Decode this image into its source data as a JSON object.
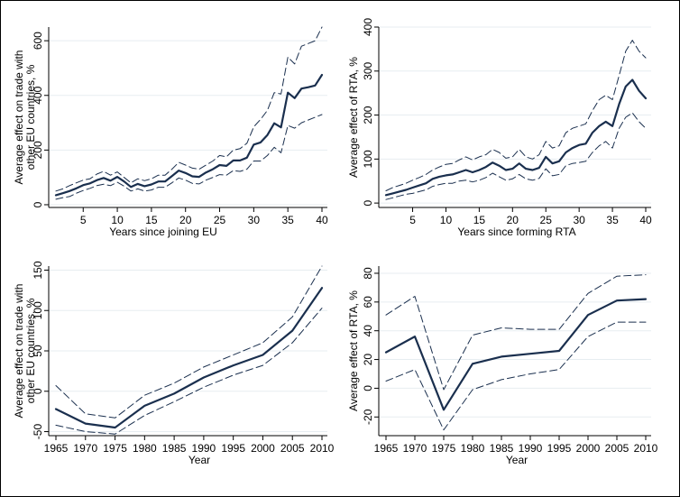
{
  "chart_data": [
    {
      "type": "line",
      "xlabel": "Years since joining EU",
      "ylabel": [
        "Average effect on trade with",
        "other EU countries, %"
      ],
      "xlim": [
        1,
        40
      ],
      "ylim": [
        -10,
        650
      ],
      "xticks": [
        "5",
        "10",
        "15",
        "20",
        "25",
        "30",
        "35",
        "40"
      ],
      "yticks": [
        "0",
        "200",
        "400",
        "600"
      ],
      "x": [
        1,
        2,
        3,
        4,
        5,
        6,
        7,
        8,
        9,
        10,
        11,
        12,
        13,
        14,
        15,
        16,
        17,
        18,
        19,
        20,
        21,
        22,
        23,
        24,
        25,
        26,
        27,
        28,
        29,
        30,
        31,
        32,
        33,
        34,
        35,
        36,
        37,
        38,
        39,
        40
      ],
      "series": [
        {
          "values": [
            35,
            42,
            50,
            60,
            72,
            78,
            90,
            98,
            88,
            102,
            85,
            65,
            76,
            68,
            74,
            85,
            85,
            105,
            125,
            116,
            104,
            102,
            118,
            130,
            145,
            142,
            162,
            162,
            172,
            220,
            228,
            255,
            298,
            283,
            410,
            390,
            425,
            430,
            436,
            475
          ],
          "style": "solid"
        },
        {
          "values": [
            50,
            58,
            70,
            80,
            90,
            95,
            112,
            122,
            108,
            120,
            100,
            80,
            95,
            88,
            95,
            108,
            108,
            130,
            155,
            145,
            134,
            130,
            145,
            160,
            180,
            175,
            200,
            205,
            225,
            285,
            312,
            345,
            410,
            405,
            540,
            515,
            580,
            590,
            600,
            650
          ],
          "style": "dashed"
        },
        {
          "values": [
            20,
            26,
            30,
            42,
            52,
            60,
            70,
            75,
            70,
            82,
            68,
            50,
            58,
            50,
            54,
            64,
            64,
            80,
            98,
            90,
            78,
            76,
            90,
            100,
            110,
            108,
            125,
            122,
            130,
            160,
            160,
            180,
            210,
            190,
            290,
            280,
            300,
            310,
            320,
            330
          ],
          "style": "dashed"
        }
      ]
    },
    {
      "type": "line",
      "xlabel": "Years since forming RTA",
      "ylabel": [
        "Average effect of RTA, %"
      ],
      "xlim": [
        1,
        40
      ],
      "ylim": [
        -10,
        400
      ],
      "xticks": [
        "5",
        "10",
        "15",
        "20",
        "25",
        "30",
        "35",
        "40"
      ],
      "yticks": [
        "0",
        "100",
        "200",
        "300",
        "400"
      ],
      "x": [
        1,
        2,
        3,
        4,
        5,
        6,
        7,
        8,
        9,
        10,
        11,
        12,
        13,
        14,
        15,
        16,
        17,
        18,
        19,
        20,
        21,
        22,
        23,
        24,
        25,
        26,
        27,
        28,
        29,
        30,
        31,
        32,
        33,
        34,
        35,
        36,
        37,
        38,
        39,
        40
      ],
      "series": [
        {
          "values": [
            18,
            22,
            26,
            30,
            35,
            40,
            45,
            55,
            60,
            63,
            65,
            70,
            75,
            70,
            75,
            82,
            92,
            85,
            75,
            78,
            90,
            78,
            75,
            80,
            105,
            90,
            95,
            115,
            125,
            132,
            135,
            160,
            175,
            185,
            175,
            225,
            265,
            280,
            255,
            238
          ],
          "style": "solid"
        },
        {
          "values": [
            28,
            35,
            40,
            45,
            52,
            58,
            65,
            75,
            82,
            88,
            90,
            98,
            105,
            98,
            105,
            110,
            122,
            115,
            102,
            105,
            122,
            105,
            100,
            110,
            140,
            125,
            130,
            160,
            170,
            175,
            180,
            210,
            235,
            245,
            235,
            290,
            345,
            370,
            345,
            330
          ],
          "style": "dashed"
        },
        {
          "values": [
            8,
            12,
            16,
            20,
            22,
            26,
            30,
            38,
            42,
            45,
            45,
            50,
            52,
            48,
            52,
            58,
            68,
            60,
            52,
            55,
            65,
            55,
            52,
            56,
            78,
            62,
            65,
            85,
            90,
            92,
            95,
            115,
            130,
            140,
            125,
            170,
            195,
            205,
            185,
            170
          ],
          "style": "dashed"
        }
      ]
    },
    {
      "type": "line",
      "xlabel": "Year",
      "ylabel": [
        "Average effect on trade with",
        "other EU countries, %"
      ],
      "xlim": [
        1965,
        2010
      ],
      "ylim": [
        -55,
        155
      ],
      "xticks": [
        "1965",
        "1970",
        "1975",
        "1980",
        "1985",
        "1990",
        "1995",
        "2000",
        "2005",
        "2010"
      ],
      "yticks": [
        "-50",
        "0",
        "50",
        "100",
        "150"
      ],
      "x": [
        1965,
        1970,
        1975,
        1980,
        1985,
        1990,
        1995,
        2000,
        2005,
        2010
      ],
      "series": [
        {
          "values": [
            -22,
            -40,
            -45,
            -18,
            -3,
            17,
            32,
            45,
            75,
            128
          ],
          "style": "solid"
        },
        {
          "values": [
            7,
            -28,
            -33,
            -5,
            10,
            30,
            45,
            60,
            92,
            155
          ],
          "style": "dashed"
        },
        {
          "values": [
            -42,
            -50,
            -53,
            -30,
            -13,
            5,
            20,
            32,
            60,
            103
          ],
          "style": "dashed"
        }
      ]
    },
    {
      "type": "line",
      "xlabel": "Year",
      "ylabel": [
        "Average effect of RTA, %"
      ],
      "xlim": [
        1965,
        2010
      ],
      "ylim": [
        -33,
        85
      ],
      "xticks": [
        "1965",
        "1970",
        "1975",
        "1980",
        "1985",
        "1990",
        "1995",
        "2000",
        "2005",
        "2010"
      ],
      "yticks": [
        "-20",
        "0",
        "20",
        "40",
        "60",
        "80"
      ],
      "x": [
        1965,
        1970,
        1975,
        1980,
        1985,
        1990,
        1995,
        2000,
        2005,
        2010
      ],
      "series": [
        {
          "values": [
            25,
            36,
            -15,
            17,
            22,
            24,
            26,
            51,
            61,
            62
          ],
          "style": "solid"
        },
        {
          "values": [
            51,
            64,
            -1,
            37,
            42,
            41,
            41,
            66,
            78,
            79
          ],
          "style": "dashed"
        },
        {
          "values": [
            5,
            13,
            -29,
            -1,
            6,
            10,
            13,
            36,
            46,
            46
          ],
          "style": "dashed"
        }
      ]
    }
  ],
  "colors": {
    "line": "#1a2f4e",
    "grid": "#e7edf1",
    "axis": "#000000",
    "background": "#ffffff"
  }
}
